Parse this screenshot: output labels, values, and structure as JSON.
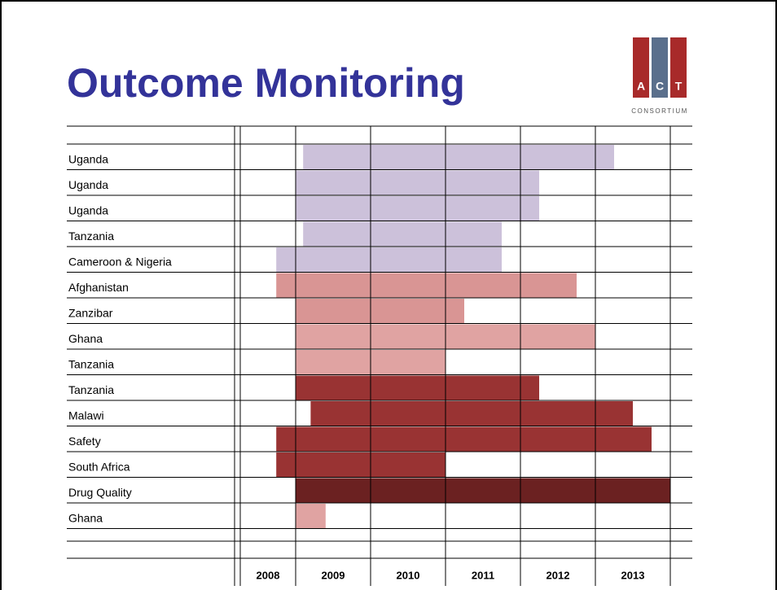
{
  "chart_data": {
    "type": "gantt",
    "title": "Outcome Monitoring",
    "logo": {
      "letters": [
        "A",
        "C",
        "T"
      ],
      "text": "CONSORTIUM"
    },
    "categories": [
      "Uganda",
      "Uganda",
      "Uganda",
      "Tanzania",
      "Cameroon & Nigeria",
      "Afghanistan",
      "Zanzibar",
      "Ghana",
      "Tanzania",
      "Tanzania",
      "Malawi",
      "Safety",
      "South Africa",
      "Drug Quality",
      "Ghana"
    ],
    "start": [
      2009.1,
      2009.0,
      2009.0,
      2009.1,
      2008.65,
      2008.65,
      2009.0,
      2009.0,
      2009.0,
      2009.0,
      2009.2,
      2008.65,
      2008.65,
      2009.0,
      2009.0
    ],
    "end": [
      2013.25,
      2012.25,
      2012.25,
      2011.75,
      2011.75,
      2012.75,
      2011.25,
      2013.0,
      2011.0,
      2012.25,
      2013.5,
      2013.75,
      2011.0,
      2014.0,
      2009.4
    ],
    "colors": [
      "#ccc1da",
      "#ccc1da",
      "#ccc1da",
      "#ccc1da",
      "#ccc1da",
      "#d99594",
      "#d99594",
      "#e0a3a2",
      "#e0a3a2",
      "#993333",
      "#993333",
      "#993333",
      "#993333",
      "#6b2121",
      "#e0a3a2"
    ],
    "years": [
      "2008",
      "2009",
      "2010",
      "2011",
      "2012",
      "2013"
    ],
    "xlim": [
      2008,
      2014
    ]
  }
}
